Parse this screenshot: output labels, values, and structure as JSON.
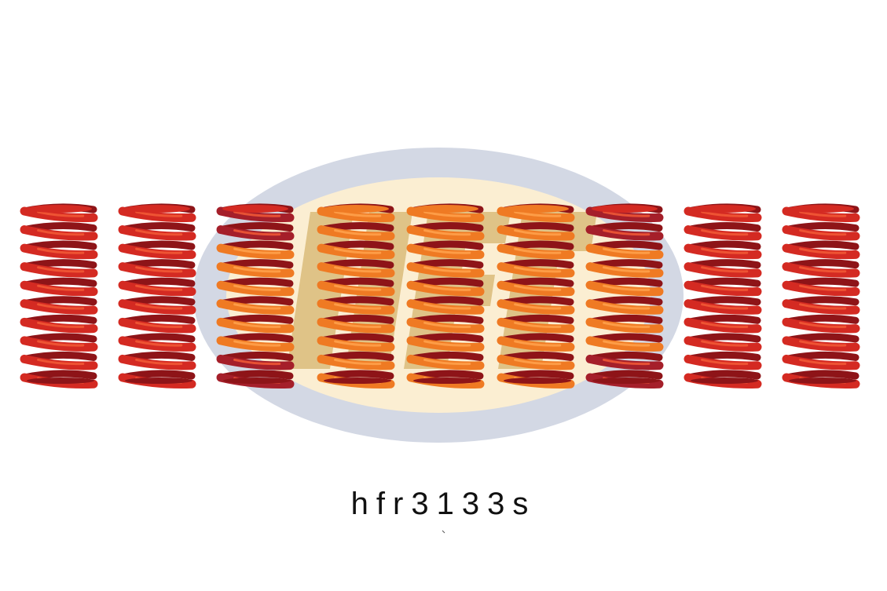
{
  "colors": {
    "background": "#ffffff",
    "logo_ellipse": "#d3d8e4",
    "logo_inner": "#fbeed2",
    "logo_letters": "#c9a04a",
    "spring_red": "#d42a22",
    "spring_highlight": "#f25a36",
    "spring_orange": "#ef7a23",
    "spring_orange_highlight": "#ffa24c",
    "spring_shadow": "#8e1418",
    "spring_dark_red": "#a51f2a"
  },
  "logo": {
    "letters": "HF"
  },
  "springs": [
    {
      "id": "spring-1",
      "tone": "red",
      "coils": 9
    },
    {
      "id": "spring-2",
      "tone": "red",
      "coils": 9
    },
    {
      "id": "spring-3",
      "tone": "mixed",
      "coils": 9
    },
    {
      "id": "spring-4",
      "tone": "orange",
      "coils": 9
    },
    {
      "id": "spring-5",
      "tone": "orange",
      "coils": 9
    },
    {
      "id": "spring-6",
      "tone": "orange",
      "coils": 9
    },
    {
      "id": "spring-7",
      "tone": "mixed",
      "coils": 9
    },
    {
      "id": "spring-8",
      "tone": "red",
      "coils": 9
    },
    {
      "id": "spring-9",
      "tone": "red",
      "coils": 9
    }
  ],
  "product": {
    "code": "hfr3133s"
  }
}
